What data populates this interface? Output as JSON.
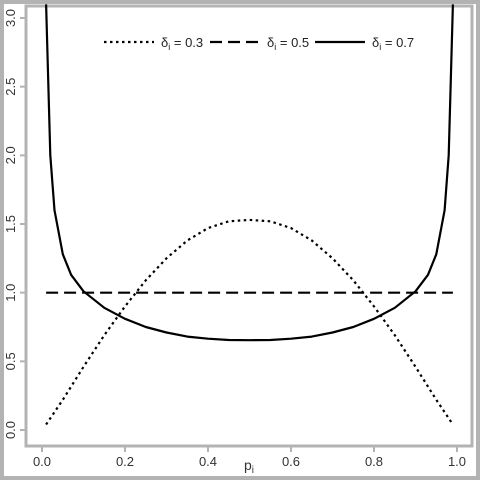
{
  "chart_data": {
    "type": "line",
    "title": "",
    "xlabel": "p",
    "xlabel_sub": "i",
    "ylabel": "",
    "xlim": [
      0,
      1
    ],
    "ylim": [
      0,
      3.1
    ],
    "x_ticks": [
      0.0,
      0.2,
      0.4,
      0.6,
      0.8,
      1.0
    ],
    "x_tick_labels": [
      "0.0",
      "0.2",
      "0.4",
      "0.6",
      "0.8",
      "1.0"
    ],
    "y_ticks": [
      0.0,
      0.5,
      1.0,
      1.5,
      2.0,
      2.5,
      3.0
    ],
    "y_tick_labels": [
      "0.0",
      "0.5",
      "1.0",
      "1.5",
      "2.0",
      "2.5",
      "3.0"
    ],
    "grid": false,
    "legend_position": "top",
    "frame_color": "#b3b3b3",
    "series": [
      {
        "name": "δ",
        "name_sub": "i",
        "name_value": " = 0.3",
        "style": "dotted",
        "color": "#000000",
        "x": [
          0.01,
          0.05,
          0.1,
          0.15,
          0.2,
          0.25,
          0.3,
          0.35,
          0.4,
          0.45,
          0.5,
          0.55,
          0.6,
          0.65,
          0.7,
          0.75,
          0.8,
          0.85,
          0.9,
          0.95,
          0.99
        ],
        "y": [
          0.04,
          0.22,
          0.46,
          0.69,
          0.9,
          1.09,
          1.25,
          1.38,
          1.47,
          1.52,
          1.53,
          1.52,
          1.47,
          1.38,
          1.25,
          1.09,
          0.9,
          0.69,
          0.46,
          0.22,
          0.04
        ]
      },
      {
        "name": "δ",
        "name_sub": "i",
        "name_value": " = 0.5",
        "style": "dashed",
        "color": "#000000",
        "x": [
          0.01,
          0.99
        ],
        "y": [
          1.0,
          1.0
        ]
      },
      {
        "name": "δ",
        "name_sub": "i",
        "name_value": " = 0.7",
        "style": "solid",
        "color": "#000000",
        "x": [
          0.01,
          0.02,
          0.03,
          0.05,
          0.07,
          0.1,
          0.15,
          0.2,
          0.25,
          0.3,
          0.35,
          0.4,
          0.45,
          0.5,
          0.55,
          0.6,
          0.65,
          0.7,
          0.75,
          0.8,
          0.85,
          0.9,
          0.93,
          0.95,
          0.97,
          0.98,
          0.99
        ],
        "y": [
          3.1,
          2.0,
          1.6,
          1.28,
          1.13,
          1.01,
          0.89,
          0.81,
          0.75,
          0.71,
          0.68,
          0.665,
          0.655,
          0.654,
          0.655,
          0.665,
          0.68,
          0.71,
          0.75,
          0.81,
          0.89,
          1.01,
          1.13,
          1.28,
          1.6,
          2.0,
          3.1
        ]
      }
    ]
  }
}
